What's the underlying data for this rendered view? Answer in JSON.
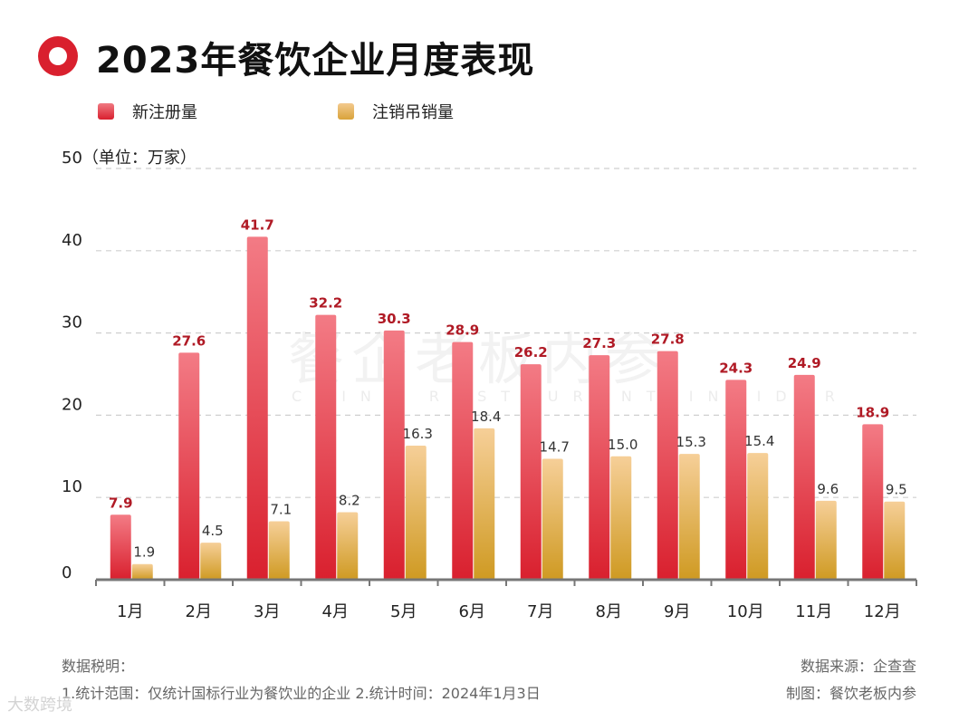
{
  "title": "2023年餐饮企业月度表现",
  "legend": [
    {
      "label": "新注册量",
      "color": "#e03a48"
    },
    {
      "label": "注销吊销量",
      "color": "#e4a93a"
    }
  ],
  "watermark": {
    "cn": "餐企老板内参",
    "en": "CHINA RESTAURANT INSIDER"
  },
  "notes": {
    "desc_label": "数据税明：",
    "desc_text": "1.统计范围：仅统计国标行业为餐饮业的企业 2.统计时间：2024年1月3日",
    "source": "数据来源：企查查",
    "made_by": "制图：餐饮老板内参"
  },
  "bottom_watermark": "大数跨境",
  "colors": {
    "new": "#d9202e",
    "cancel": "#d9a33a",
    "new_label": "#b01a25",
    "cancel_label": "#333333"
  },
  "chart_data": {
    "type": "bar",
    "title": "2023年餐饮企业月度表现",
    "ylabel": "（单位：万家）",
    "ylim": [
      0,
      50
    ],
    "yticks": [
      0,
      10,
      20,
      30,
      40,
      50
    ],
    "unit_tick_label": "50（单位：万家）",
    "categories": [
      "1月",
      "2月",
      "3月",
      "4月",
      "5月",
      "6月",
      "7月",
      "8月",
      "9月",
      "10月",
      "11月",
      "12月"
    ],
    "series": [
      {
        "name": "新注册量",
        "values": [
          7.9,
          27.6,
          41.7,
          32.2,
          30.3,
          28.9,
          26.2,
          27.3,
          27.8,
          24.3,
          24.9,
          18.9
        ]
      },
      {
        "name": "注销吊销量",
        "values": [
          1.9,
          4.5,
          7.1,
          8.2,
          16.3,
          18.4,
          14.7,
          15.0,
          15.3,
          15.4,
          9.6,
          9.5
        ]
      }
    ],
    "grid": true,
    "legend_position": "top-left"
  }
}
